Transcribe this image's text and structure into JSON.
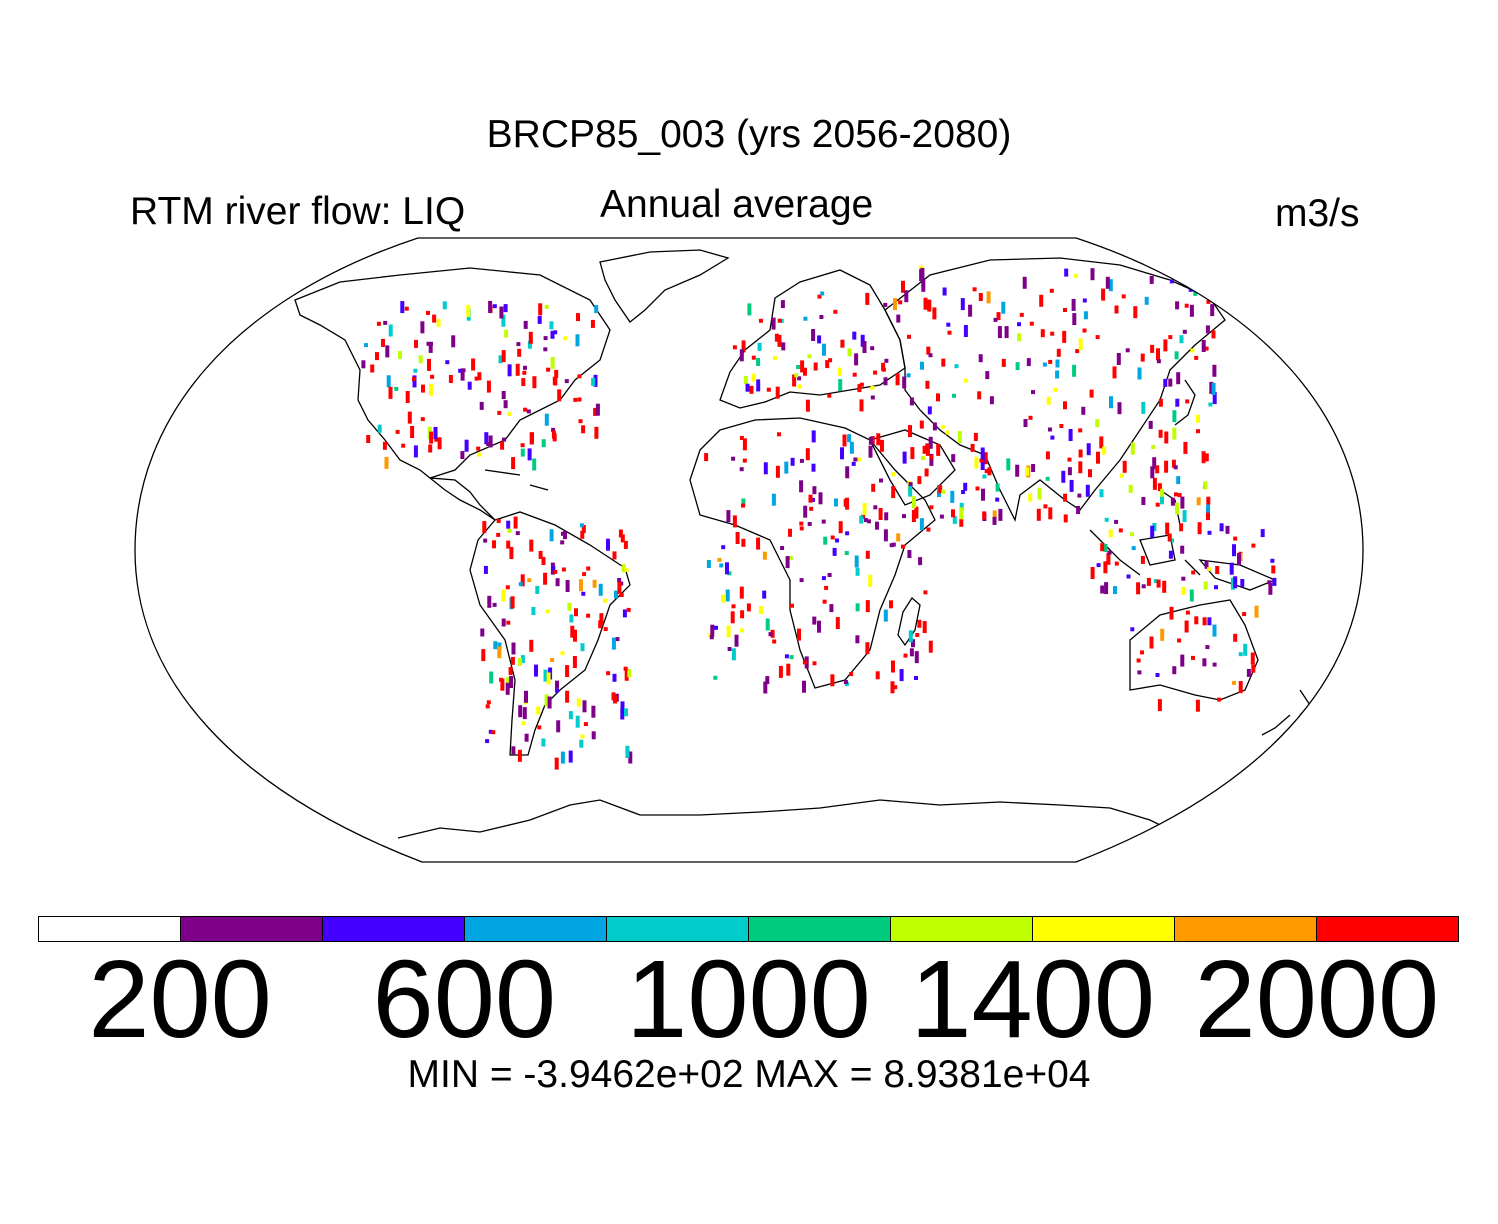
{
  "header": {
    "title": "BRCP85_003 (yrs 2056-2080)",
    "left_label": "RTM river flow: LIQ",
    "center_label": "Annual average",
    "units": "m3/s"
  },
  "colorbar": {
    "colors": [
      "#ffffff",
      "#7f0088",
      "#4400ff",
      "#00a5e2",
      "#00cccc",
      "#00cc80",
      "#c0ff00",
      "#ffff00",
      "#ff9900",
      "#ff0000"
    ],
    "tick_labels": [
      "200",
      "600",
      "1000",
      "1400",
      "2000"
    ]
  },
  "footer": {
    "minmax": "MIN = -3.9462e+02 MAX = 8.9381e+04"
  }
}
